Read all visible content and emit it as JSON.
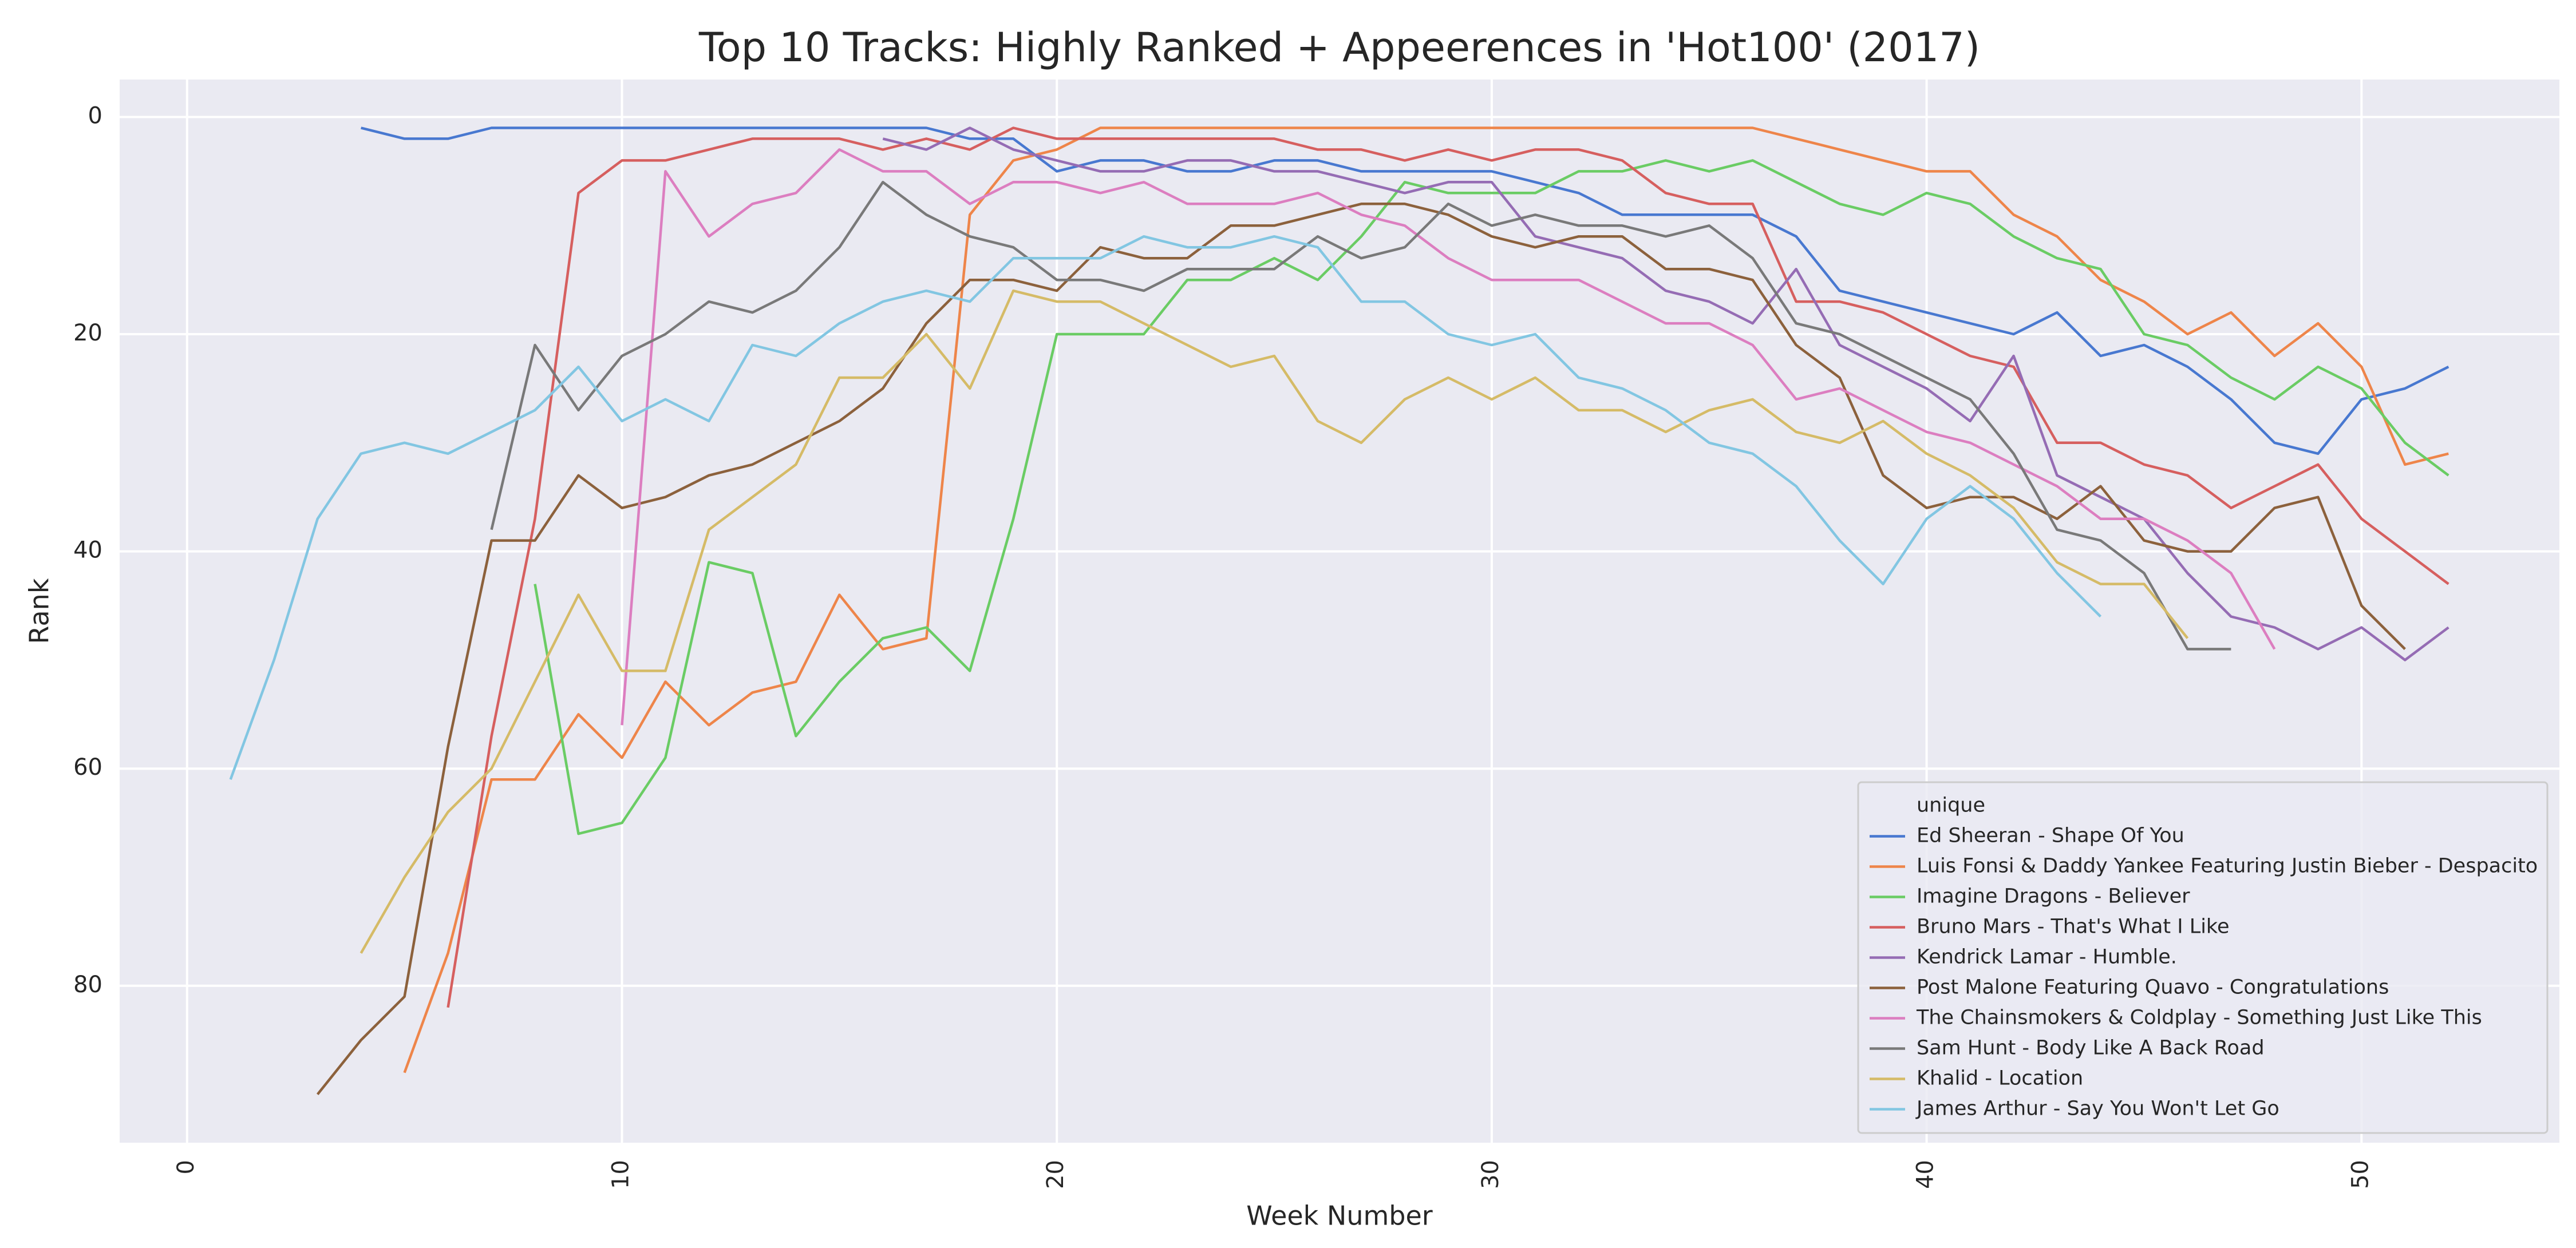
{
  "chart_data": {
    "type": "line",
    "title": "Top 10 Tracks: Highly Ranked + Appeerences  in 'Hot100' (2017)",
    "x_label": "Week Number",
    "y_label": "Rank",
    "x": [
      1,
      2,
      3,
      4,
      5,
      6,
      7,
      8,
      9,
      10,
      11,
      12,
      13,
      14,
      15,
      16,
      17,
      18,
      19,
      20,
      21,
      22,
      23,
      24,
      25,
      26,
      27,
      28,
      29,
      30,
      31,
      32,
      33,
      34,
      35,
      36,
      37,
      38,
      39,
      40,
      41,
      42,
      43,
      44,
      45,
      46,
      47,
      48,
      49,
      50,
      51,
      52
    ],
    "xlim": [
      -1.55,
      54.55
    ],
    "xticks": [
      0,
      10,
      20,
      30,
      40,
      50
    ],
    "ylim": [
      94.45,
      -3.45
    ],
    "yticks": [
      0,
      20,
      40,
      60,
      80
    ],
    "grid": true,
    "legend_title": "unique",
    "legend_position": "lower right",
    "series": [
      {
        "name": "Ed Sheeran - Shape Of You",
        "color": "#4878d0",
        "values": [
          null,
          null,
          null,
          1,
          2,
          2,
          1,
          1,
          1,
          1,
          1,
          1,
          1,
          1,
          1,
          1,
          1,
          2,
          2,
          5,
          4,
          4,
          5,
          5,
          4,
          4,
          5,
          5,
          5,
          5,
          6,
          7,
          9,
          9,
          9,
          9,
          11,
          16,
          17,
          18,
          19,
          20,
          18,
          22,
          21,
          23,
          26,
          30,
          31,
          26,
          25,
          23
        ]
      },
      {
        "name": "Luis Fonsi & Daddy Yankee Featuring Justin Bieber - Despacito",
        "color": "#ee854a",
        "values": [
          null,
          null,
          null,
          null,
          88,
          77,
          61,
          61,
          55,
          59,
          52,
          56,
          53,
          52,
          44,
          49,
          48,
          9,
          4,
          3,
          1,
          1,
          1,
          1,
          1,
          1,
          1,
          1,
          1,
          1,
          1,
          1,
          1,
          1,
          1,
          1,
          2,
          3,
          4,
          5,
          5,
          9,
          11,
          15,
          17,
          20,
          18,
          22,
          19,
          23,
          32,
          31
        ]
      },
      {
        "name": "Imagine Dragons - Believer",
        "color": "#6acc64",
        "values": [
          null,
          null,
          null,
          null,
          null,
          null,
          null,
          43,
          66,
          65,
          59,
          41,
          42,
          57,
          52,
          48,
          47,
          51,
          37,
          20,
          20,
          20,
          15,
          15,
          13,
          15,
          11,
          6,
          7,
          7,
          7,
          5,
          5,
          4,
          5,
          4,
          6,
          8,
          9,
          7,
          8,
          11,
          13,
          14,
          20,
          21,
          24,
          26,
          23,
          25,
          30,
          33
        ]
      },
      {
        "name": "Bruno Mars - That's What I Like",
        "color": "#d65f5f",
        "values": [
          null,
          null,
          null,
          null,
          null,
          82,
          57,
          37,
          7,
          4,
          4,
          3,
          2,
          2,
          2,
          3,
          2,
          3,
          1,
          2,
          2,
          2,
          2,
          2,
          2,
          3,
          3,
          4,
          3,
          4,
          3,
          3,
          4,
          7,
          8,
          8,
          17,
          17,
          18,
          20,
          22,
          23,
          30,
          30,
          32,
          33,
          36,
          34,
          32,
          37,
          40,
          43
        ]
      },
      {
        "name": "Kendrick Lamar - Humble.",
        "color": "#956cb4",
        "values": [
          null,
          null,
          null,
          null,
          null,
          null,
          null,
          null,
          null,
          null,
          null,
          null,
          null,
          null,
          null,
          2,
          3,
          1,
          3,
          4,
          5,
          5,
          4,
          4,
          5,
          5,
          6,
          7,
          6,
          6,
          11,
          12,
          13,
          16,
          17,
          19,
          14,
          21,
          23,
          25,
          28,
          22,
          33,
          35,
          37,
          42,
          46,
          47,
          49,
          47,
          50,
          47
        ]
      },
      {
        "name": "Post Malone Featuring Quavo - Congratulations",
        "color": "#8c613c",
        "values": [
          null,
          null,
          90,
          85,
          81,
          58,
          39,
          39,
          33,
          36,
          35,
          33,
          32,
          30,
          28,
          25,
          19,
          15,
          15,
          16,
          12,
          13,
          13,
          10,
          10,
          9,
          8,
          8,
          9,
          11,
          12,
          11,
          11,
          14,
          14,
          15,
          21,
          24,
          33,
          36,
          35,
          35,
          37,
          34,
          39,
          40,
          40,
          36,
          35,
          45,
          49,
          null
        ]
      },
      {
        "name": "The Chainsmokers & Coldplay - Something Just Like This",
        "color": "#dc7ec0",
        "values": [
          null,
          null,
          null,
          null,
          null,
          null,
          null,
          null,
          null,
          56,
          5,
          11,
          8,
          7,
          3,
          5,
          5,
          8,
          6,
          6,
          7,
          6,
          8,
          8,
          8,
          7,
          9,
          10,
          13,
          15,
          15,
          15,
          17,
          19,
          19,
          21,
          26,
          25,
          27,
          29,
          30,
          32,
          34,
          37,
          37,
          39,
          42,
          49,
          null,
          null,
          null,
          null
        ]
      },
      {
        "name": "Sam Hunt - Body Like A Back Road",
        "color": "#797979",
        "values": [
          null,
          null,
          null,
          null,
          null,
          null,
          38,
          21,
          27,
          22,
          20,
          17,
          18,
          16,
          12,
          6,
          9,
          11,
          12,
          15,
          15,
          16,
          14,
          14,
          14,
          11,
          13,
          12,
          8,
          10,
          9,
          10,
          10,
          11,
          10,
          13,
          19,
          20,
          22,
          24,
          26,
          31,
          38,
          39,
          42,
          49,
          49,
          null,
          null,
          null,
          null,
          null
        ]
      },
      {
        "name": "Khalid - Location",
        "color": "#d5bb67",
        "values": [
          null,
          null,
          null,
          77,
          70,
          64,
          60,
          52,
          44,
          51,
          51,
          38,
          35,
          32,
          24,
          24,
          20,
          25,
          16,
          17,
          17,
          19,
          21,
          23,
          22,
          28,
          30,
          26,
          24,
          26,
          24,
          27,
          27,
          29,
          27,
          26,
          29,
          30,
          28,
          31,
          33,
          36,
          41,
          43,
          43,
          48,
          null,
          null,
          null,
          null,
          null,
          null
        ]
      },
      {
        "name": "James Arthur - Say You Won't Let Go",
        "color": "#82c6e2",
        "values": [
          61,
          50,
          37,
          31,
          30,
          31,
          29,
          27,
          23,
          28,
          26,
          28,
          21,
          22,
          19,
          17,
          16,
          17,
          13,
          13,
          13,
          11,
          12,
          12,
          11,
          12,
          17,
          17,
          20,
          21,
          20,
          24,
          25,
          27,
          30,
          31,
          34,
          39,
          43,
          37,
          34,
          37,
          42,
          46,
          null,
          null,
          null,
          null,
          null,
          null,
          null,
          null
        ]
      }
    ]
  }
}
